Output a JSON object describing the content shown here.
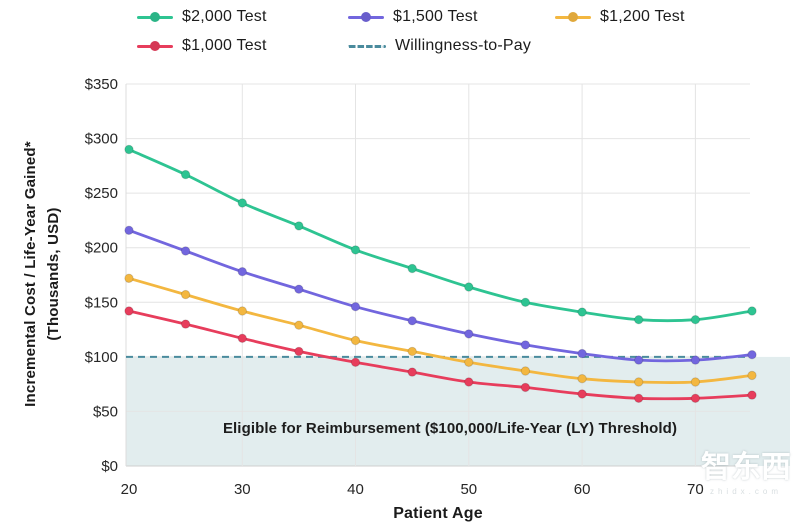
{
  "legend": {
    "items": [
      {
        "label": "$2,000 Test",
        "color": "#2EC492",
        "swatch": "line-dot"
      },
      {
        "label": "$1,500 Test",
        "color": "#7266DE",
        "swatch": "line-dot"
      },
      {
        "label": "$1,200 Test",
        "color": "#F3B740",
        "swatch": "line-dot"
      },
      {
        "label": "$1,000 Test",
        "color": "#E73D5C",
        "swatch": "line-dot"
      },
      {
        "label": "Willingness-to-Pay",
        "color": "#4A8B9D",
        "swatch": "dashed-line"
      }
    ]
  },
  "axes": {
    "y_title_line1": "Incremental Cost / Life-Year Gained*",
    "y_title_line2": "(Thousands, USD)",
    "x_title": "Patient Age"
  },
  "watermark": {
    "logo": "智东西",
    "site": "zhidx.com"
  },
  "chart_data": {
    "type": "line",
    "title": "",
    "xlabel": "Patient Age",
    "ylabel": "Incremental Cost / Life-Year Gained* (Thousands, USD)",
    "x": [
      20,
      25,
      30,
      35,
      40,
      45,
      50,
      55,
      60,
      65,
      70,
      75
    ],
    "xlim": [
      20,
      75
    ],
    "ylim": [
      0,
      350
    ],
    "grid": true,
    "legend_position": "top",
    "y_ticks": [
      {
        "label": "$0",
        "value": 0
      },
      {
        "label": "$50",
        "value": 50
      },
      {
        "label": "$100",
        "value": 100
      },
      {
        "label": "$150",
        "value": 150
      },
      {
        "label": "$200",
        "value": 200
      },
      {
        "label": "$250",
        "value": 250
      },
      {
        "label": "$300",
        "value": 300
      },
      {
        "label": "$350",
        "value": 350
      }
    ],
    "x_ticks": [
      {
        "label": "20",
        "value": 20
      },
      {
        "label": "30",
        "value": 30
      },
      {
        "label": "40",
        "value": 40
      },
      {
        "label": "50",
        "value": 50
      },
      {
        "label": "60",
        "value": 60
      },
      {
        "label": "70",
        "value": 70
      }
    ],
    "series": [
      {
        "name": "$2,000 Test",
        "color": "#2EC492",
        "values": [
          290,
          267,
          241,
          220,
          198,
          181,
          164,
          150,
          141,
          134,
          134,
          142
        ]
      },
      {
        "name": "$1,500 Test",
        "color": "#7266DE",
        "values": [
          216,
          197,
          178,
          162,
          146,
          133,
          121,
          111,
          103,
          97,
          97,
          102
        ]
      },
      {
        "name": "$1,200 Test",
        "color": "#F3B740",
        "values": [
          172,
          157,
          142,
          129,
          115,
          105,
          95,
          87,
          80,
          77,
          77,
          83
        ]
      },
      {
        "name": "$1,000 Test",
        "color": "#E73D5C",
        "values": [
          142,
          130,
          117,
          105,
          95,
          86,
          77,
          72,
          66,
          62,
          62,
          65
        ]
      }
    ],
    "threshold": {
      "name": "Willingness-to-Pay",
      "value": 100,
      "color": "#4A8B9D",
      "style": "dashed"
    },
    "shaded_region": {
      "from": 0,
      "to": 100,
      "color": "#E2EDEE",
      "label": "Eligible for Reimbursement ($100,000/Life-Year (LY) Threshold)"
    }
  }
}
